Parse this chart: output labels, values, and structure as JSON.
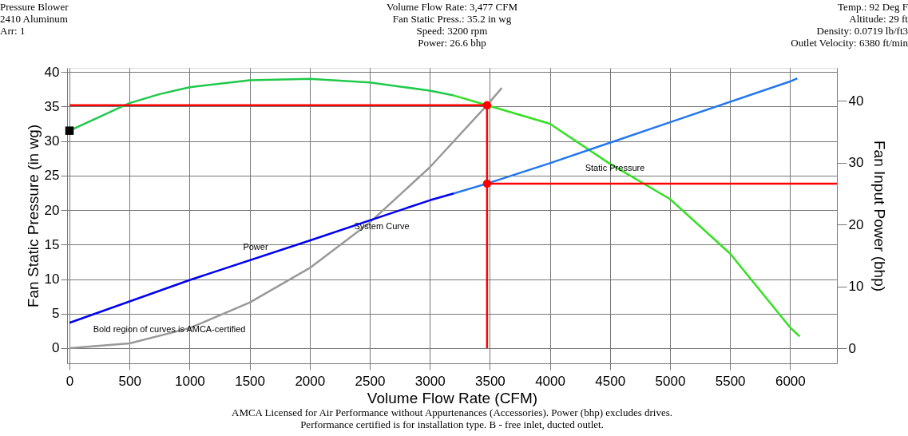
{
  "chart_data": {
    "type": "line",
    "xlabel": "Volume Flow Rate (CFM)",
    "ylabel": "Fan Static Pressure (in wg)",
    "y2label": "Fan Input Power (bhp)",
    "xlim": [
      -20,
      6390
    ],
    "ylim": [
      -2.2,
      40.6
    ],
    "y2lim": [
      -2.45,
      45.3
    ],
    "xticks": [
      0,
      500,
      1000,
      1500,
      2000,
      2500,
      3000,
      3500,
      4000,
      4500,
      5000,
      5500,
      6000
    ],
    "yticks": [
      0,
      5,
      10,
      15,
      20,
      25,
      30,
      35,
      40
    ],
    "y2ticks": [
      0,
      10,
      20,
      30,
      40
    ],
    "grid": true,
    "line_style": "solid",
    "series": [
      {
        "type": "line",
        "color": "#1fc94a",
        "x": [
          0,
          250,
          500,
          750,
          1000,
          1500,
          2000,
          2500,
          3000,
          3200
        ],
        "values": [
          31.5,
          33.5,
          35.5,
          36.8,
          37.8,
          38.8,
          39,
          38.5,
          37.3,
          36.6
        ]
      },
      {
        "type": "line",
        "color": "#33e022",
        "x": [
          3200,
          3477,
          4000,
          4500,
          5000,
          5500,
          6000,
          6080
        ],
        "values": [
          36.6,
          35.2,
          32.5,
          26.7,
          21.6,
          13.7,
          3.0,
          1.7
        ]
      },
      {
        "type": "line",
        "color": "#0000ee",
        "axis": "y2",
        "x": [
          0,
          1000,
          2000,
          3000,
          3200
        ],
        "values": [
          4.1,
          11.0,
          17.4,
          23.9,
          25.0
        ]
      },
      {
        "type": "line",
        "color": "#2277ee",
        "axis": "y2",
        "x": [
          3200,
          3477,
          4000,
          5000,
          6000,
          6060
        ],
        "values": [
          25.0,
          26.6,
          29.9,
          36.5,
          43.1,
          43.6
        ]
      },
      {
        "type": "line",
        "color": "#999999",
        "x": [
          0,
          500,
          1000,
          1500,
          2000,
          2500,
          3000,
          3477,
          3600
        ],
        "values": [
          0,
          0.7,
          2.9,
          6.6,
          11.6,
          18.2,
          26.2,
          35.2,
          37.7
        ]
      },
      {
        "type": "line",
        "color": "#ff0000",
        "x": [
          0,
          3477,
          3477
        ],
        "values": [
          35.2,
          35.2,
          0
        ]
      },
      {
        "type": "line",
        "color": "#ff0000",
        "axis": "y2",
        "x": [
          3477,
          6390
        ],
        "values": [
          26.6,
          26.6
        ]
      },
      {
        "type": "scatter",
        "marker": "circle",
        "color": "#ff0000",
        "x": [
          3477
        ],
        "values": [
          35.2
        ]
      },
      {
        "type": "scatter",
        "marker": "circle",
        "color": "#ff0000",
        "axis": "y2",
        "x": [
          3477
        ],
        "values": [
          26.6
        ]
      },
      {
        "type": "scatter",
        "marker": "square",
        "color": "#000000",
        "x": [
          0
        ],
        "values": [
          31.5
        ]
      }
    ],
    "annotations": [
      "Pressure Blower",
      "2410 Aluminum",
      "Arr: 1",
      "Volume Flow Rate: 3,477 CFM",
      "Fan Static Press.: 35.2 in wg",
      "Speed: 3200 rpm",
      "Power: 26.6 bhp",
      "Temp.: 92 Deg F",
      "Altitude: 29 ft",
      "Density: 0.0719 lb/ft3",
      "Outlet Velocity: 6380 ft/min",
      "AMCA Licensed for Air Performance without Appurtenances (Accessories). Power (bhp) excludes drives.",
      "Performance certified is for installation type. B - free inlet, ducted outlet.",
      "System Curve",
      "Power",
      "Bold region of curves is AMCA-certified",
      "Static Pressure"
    ]
  }
}
